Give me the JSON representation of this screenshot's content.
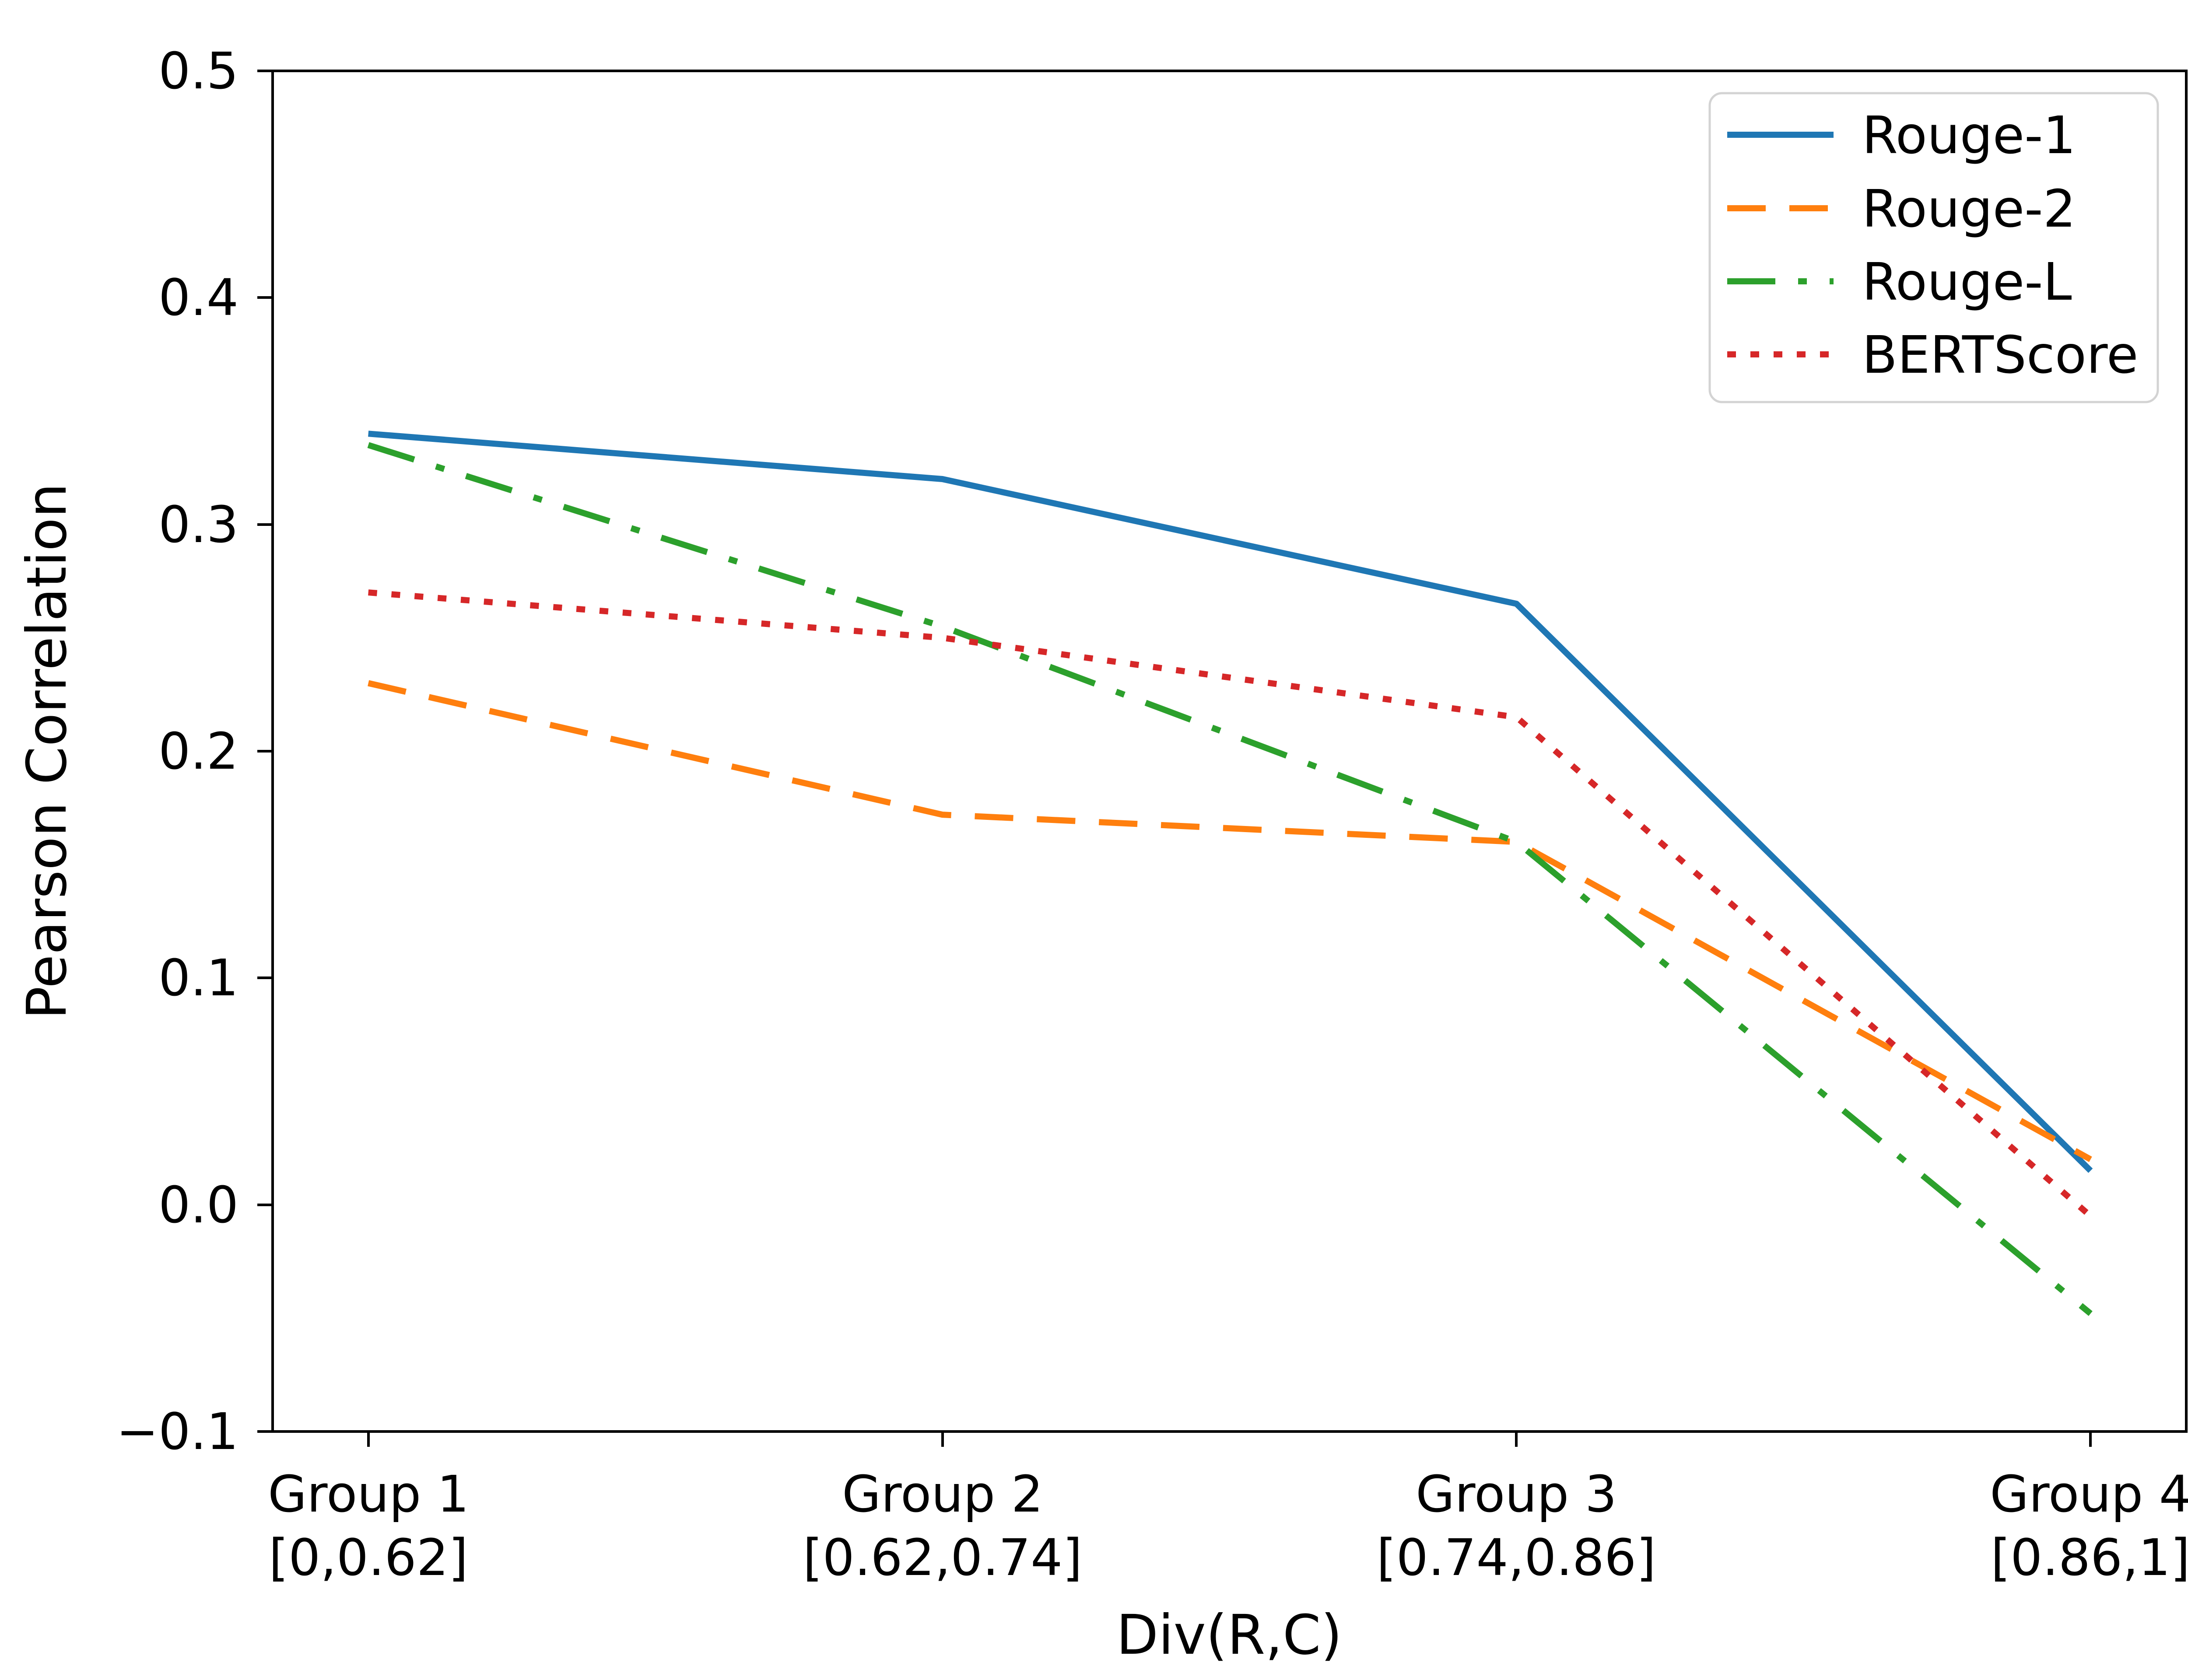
{
  "chart_data": {
    "type": "line",
    "title": "",
    "xlabel": "Div(R,C)",
    "ylabel": "Pearson Correlation",
    "x_tick_labels": [
      [
        "Group 1",
        "[0,0.62]"
      ],
      [
        "Group 2",
        "[0.62,0.74]"
      ],
      [
        "Group 3",
        "[0.74,0.86]"
      ],
      [
        "Group 4",
        "[0.86,1]"
      ]
    ],
    "ytick_labels": [
      "0.5",
      "0.4",
      "0.3",
      "0.2",
      "0.1",
      "0.0",
      "−0.1"
    ],
    "yticks": [
      0.5,
      0.4,
      0.3,
      0.2,
      0.1,
      0.0,
      -0.1
    ],
    "ylim": [
      -0.1,
      0.5
    ],
    "grid": false,
    "legend_position": "upper right",
    "series": [
      {
        "name": "Rouge-1",
        "style": "solid",
        "color": "#1f77b4",
        "values": [
          0.34,
          0.32,
          0.265,
          0.015
        ]
      },
      {
        "name": "Rouge-2",
        "style": "dashed",
        "color": "#ff7f0e",
        "values": [
          0.23,
          0.172,
          0.16,
          0.02
        ]
      },
      {
        "name": "Rouge-L",
        "style": "dashdot",
        "color": "#2ca02c",
        "values": [
          0.335,
          0.255,
          0.16,
          -0.048
        ]
      },
      {
        "name": "BERTScore",
        "style": "dotted",
        "color": "#d62728",
        "values": [
          0.27,
          0.25,
          0.215,
          -0.005
        ]
      }
    ]
  }
}
